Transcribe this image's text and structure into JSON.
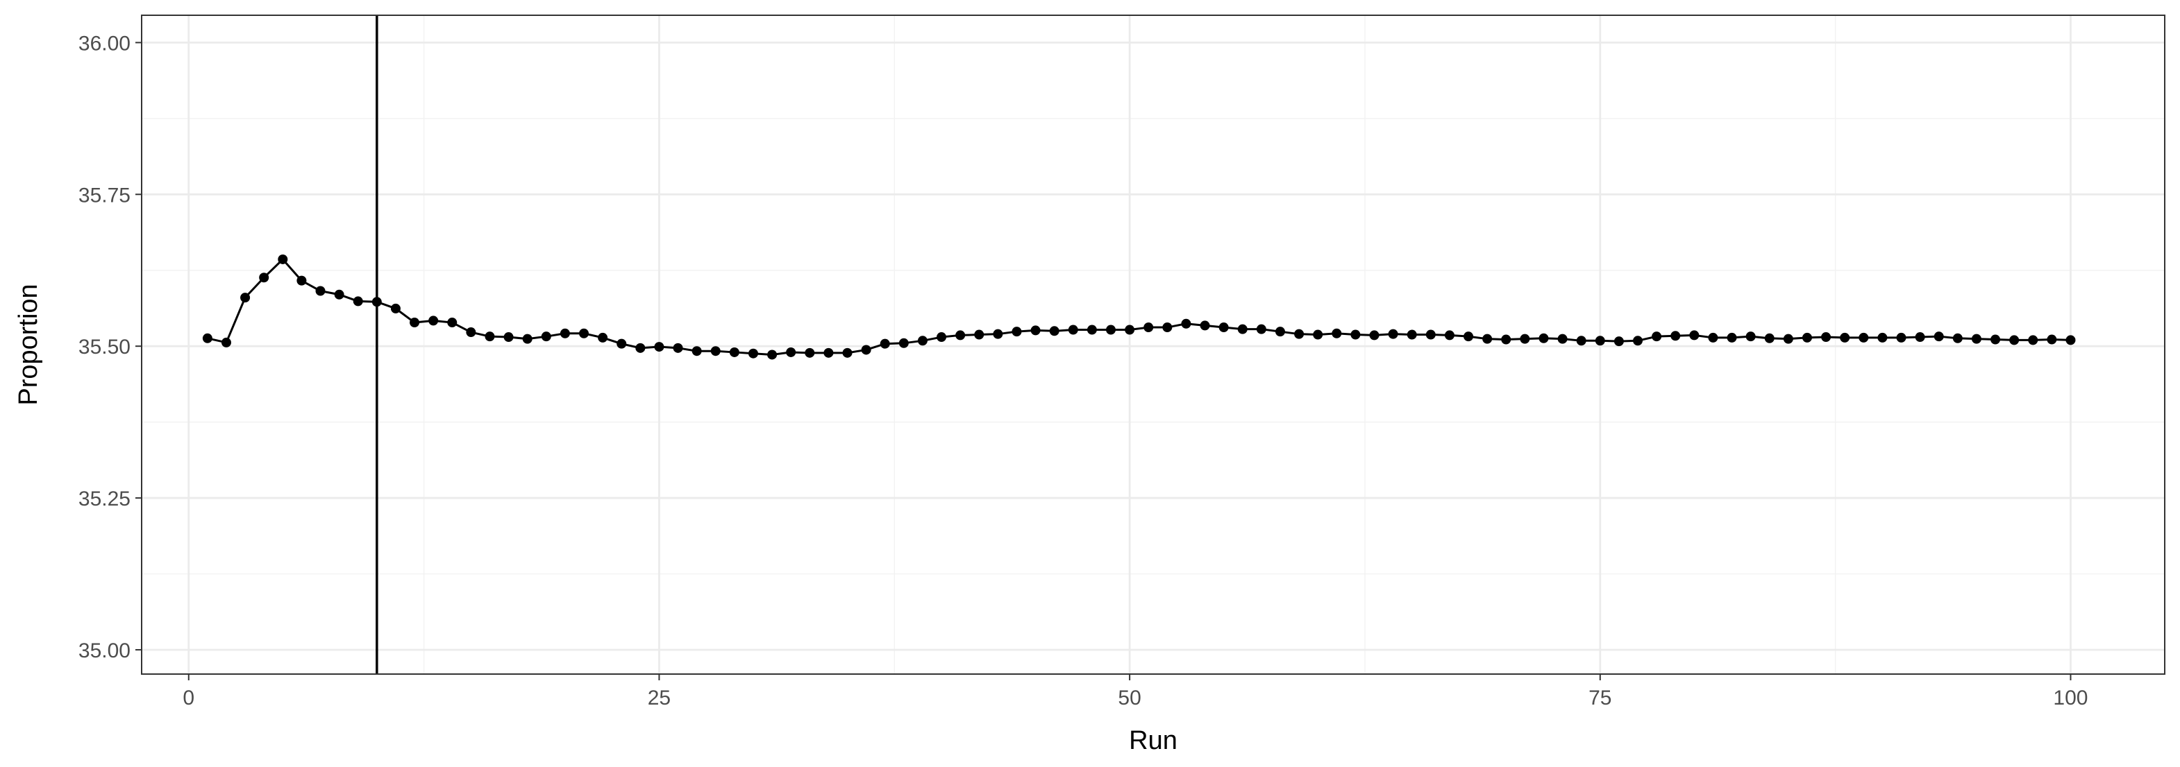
{
  "chart_data": {
    "type": "line",
    "title": "",
    "xlabel": "Run",
    "ylabel": "Proportion",
    "xlim": [
      -2.5,
      105
    ],
    "ylim": [
      34.96,
      36.045
    ],
    "x_ticks": [
      0,
      25,
      50,
      75,
      100
    ],
    "x_tick_labels": [
      "0",
      "25",
      "50",
      "75",
      "100"
    ],
    "y_ticks": [
      35.0,
      35.25,
      35.5,
      35.75,
      36.0
    ],
    "y_tick_labels": [
      "35.00",
      "35.25",
      "35.50",
      "35.75",
      "36.00"
    ],
    "grid": true,
    "legend": "none",
    "vline_x": 10,
    "series": [
      {
        "color": "#000000",
        "x": [
          1,
          2,
          3,
          4,
          5,
          6,
          7,
          8,
          9,
          10,
          11,
          12,
          13,
          14,
          15,
          16,
          17,
          18,
          19,
          20,
          21,
          22,
          23,
          24,
          25,
          26,
          27,
          28,
          29,
          30,
          31,
          32,
          33,
          34,
          35,
          36,
          37,
          38,
          39,
          40,
          41,
          42,
          43,
          44,
          45,
          46,
          47,
          48,
          49,
          50,
          51,
          52,
          53,
          54,
          55,
          56,
          57,
          58,
          59,
          60,
          61,
          62,
          63,
          64,
          65,
          66,
          67,
          68,
          69,
          70,
          71,
          72,
          73,
          74,
          75,
          76,
          77,
          78,
          79,
          80,
          81,
          82,
          83,
          84,
          85,
          86,
          87,
          88,
          89,
          90,
          91,
          92,
          93,
          94,
          95,
          96,
          97,
          98,
          99,
          100
        ],
        "values": [
          35.513,
          35.506,
          35.58,
          35.613,
          35.643,
          35.608,
          35.591,
          35.585,
          35.574,
          35.573,
          35.562,
          35.539,
          35.542,
          35.539,
          35.523,
          35.516,
          35.515,
          35.512,
          35.516,
          35.521,
          35.521,
          35.514,
          35.504,
          35.497,
          35.499,
          35.497,
          35.492,
          35.492,
          35.49,
          35.488,
          35.486,
          35.49,
          35.489,
          35.489,
          35.489,
          35.494,
          35.504,
          35.505,
          35.509,
          35.515,
          35.518,
          35.519,
          35.52,
          35.524,
          35.526,
          35.525,
          35.527,
          35.527,
          35.527,
          35.527,
          35.531,
          35.531,
          35.537,
          35.534,
          35.531,
          35.528,
          35.528,
          35.524,
          35.52,
          35.519,
          35.521,
          35.519,
          35.518,
          35.52,
          35.519,
          35.519,
          35.518,
          35.516,
          35.512,
          35.511,
          35.512,
          35.513,
          35.512,
          35.509,
          35.509,
          35.508,
          35.509,
          35.516,
          35.517,
          35.518,
          35.514,
          35.514,
          35.516,
          35.513,
          35.512,
          35.514,
          35.515,
          35.514,
          35.514,
          35.514,
          35.514,
          35.515,
          35.516,
          35.513,
          35.512,
          35.511,
          35.51,
          35.51,
          35.511,
          35.51
        ]
      }
    ]
  }
}
